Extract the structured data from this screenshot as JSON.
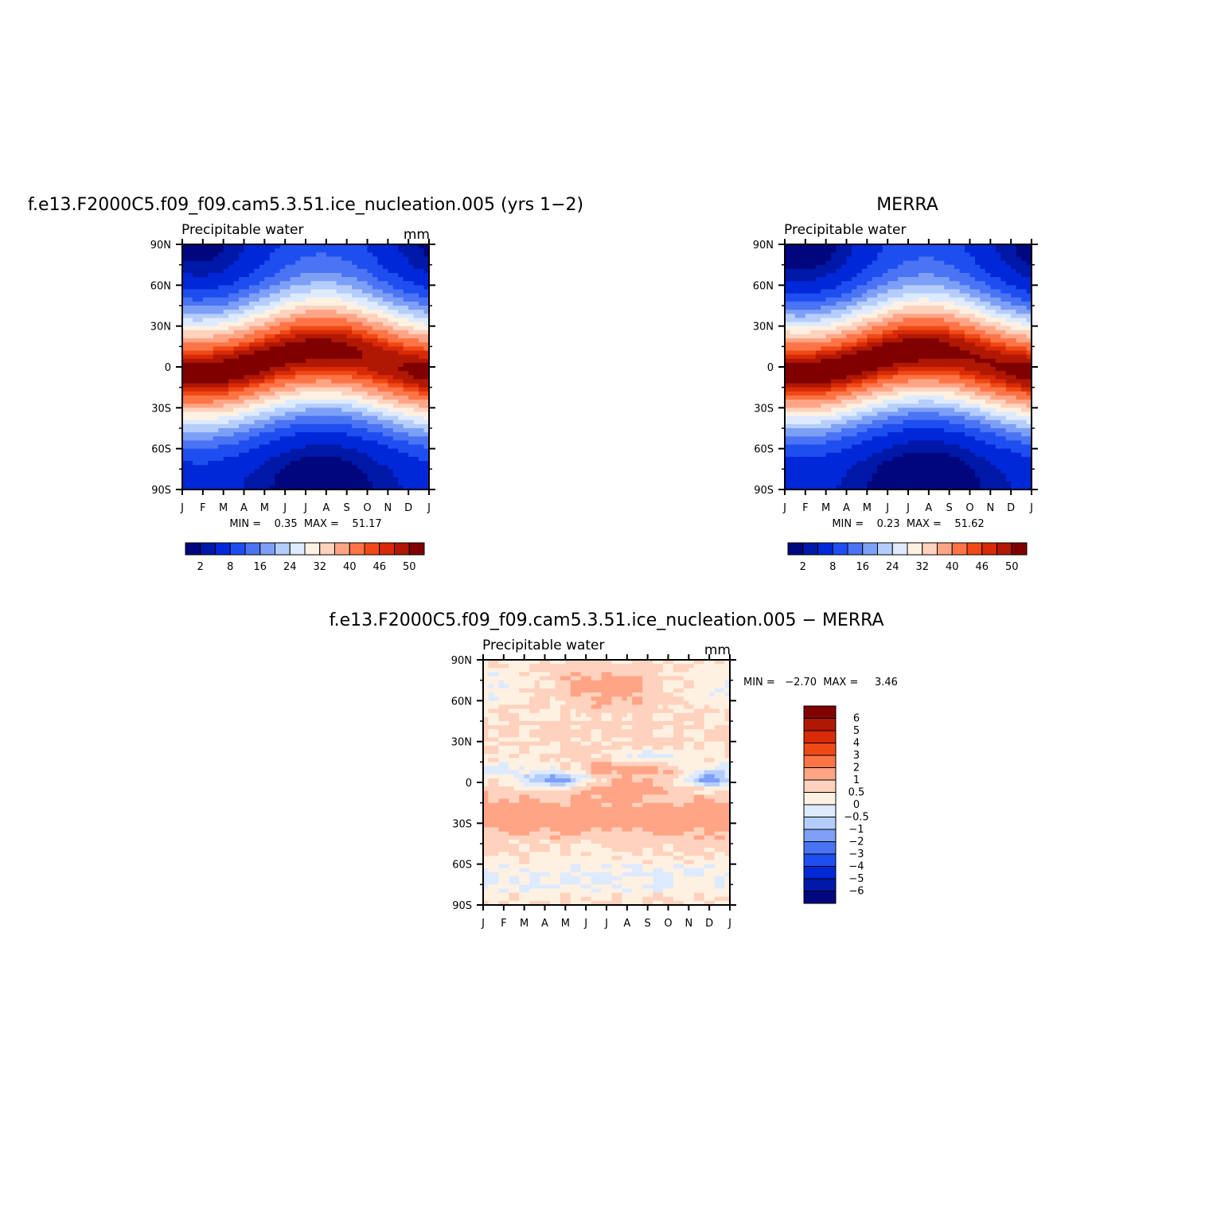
{
  "chart_data": [
    {
      "type": "heatmap",
      "title": "f.e13.F2000C5.f09_f09.cam5.3.51.ice_nucleation.005 (yrs 1−2)",
      "subtitle": "Precipitable water",
      "units": "mm",
      "x_ticks": [
        "J",
        "F",
        "M",
        "A",
        "M",
        "J",
        "J",
        "A",
        "S",
        "O",
        "N",
        "D",
        "J"
      ],
      "y_ticks": [
        "90N",
        "60N",
        "30N",
        "0",
        "30S",
        "60S",
        "90S"
      ],
      "stats_label": "MIN =    0.35  MAX =    51.17",
      "min": 0.35,
      "max": 51.17,
      "colorbar_labels": [
        "2",
        "8",
        "16",
        "24",
        "32",
        "40",
        "46",
        "50"
      ],
      "levels": [
        2,
        4,
        8,
        12,
        16,
        20,
        24,
        28,
        32,
        36,
        40,
        44,
        46,
        48,
        50
      ],
      "colors": [
        "#00077e",
        "#0018a8",
        "#0028d8",
        "#1f4ef0",
        "#4a74f3",
        "#7d9ff6",
        "#b5cdfb",
        "#ddeaff",
        "#fff1e2",
        "#ffd2be",
        "#ffa586",
        "#ff7446",
        "#ef4a16",
        "#d82a06",
        "#b01804",
        "#800000"
      ],
      "field": {
        "pole_n": 4.5,
        "pole_s": 2.3,
        "eq_peak": 50.5,
        "itcz_base": 3,
        "itcz_amp": 7,
        "width_n": 32,
        "width_s": 30,
        "nh_seasonal": 7,
        "sh_seasonal": 2.5
      }
    },
    {
      "type": "heatmap",
      "title": "MERRA",
      "subtitle": "Precipitable water",
      "units": "",
      "x_ticks": [
        "J",
        "F",
        "M",
        "A",
        "M",
        "J",
        "J",
        "A",
        "S",
        "O",
        "N",
        "D",
        "J"
      ],
      "y_ticks": [
        "90N",
        "60N",
        "30N",
        "0",
        "30S",
        "60S",
        "90S"
      ],
      "stats_label": "MIN =    0.23  MAX =    51.62",
      "min": 0.23,
      "max": 51.62,
      "colorbar_labels": [
        "2",
        "8",
        "16",
        "24",
        "32",
        "40",
        "46",
        "50"
      ],
      "levels": [
        2,
        4,
        8,
        12,
        16,
        20,
        24,
        28,
        32,
        36,
        40,
        44,
        46,
        48,
        50
      ],
      "colors": [
        "#00077e",
        "#0018a8",
        "#0028d8",
        "#1f4ef0",
        "#4a74f3",
        "#7d9ff6",
        "#b5cdfb",
        "#ddeaff",
        "#fff1e2",
        "#ffd2be",
        "#ffa586",
        "#ff7446",
        "#ef4a16",
        "#d82a06",
        "#b01804",
        "#800000"
      ],
      "field": {
        "pole_n": 4.2,
        "pole_s": 2.0,
        "eq_peak": 50.8,
        "itcz_base": 3,
        "itcz_amp": 7,
        "width_n": 31,
        "width_s": 29,
        "nh_seasonal": 7.5,
        "sh_seasonal": 2.5
      }
    },
    {
      "type": "heatmap",
      "title": "f.e13.F2000C5.f09_f09.cam5.3.51.ice_nucleation.005 − MERRA",
      "subtitle": "Precipitable water",
      "units": "mm",
      "x_ticks": [
        "J",
        "F",
        "M",
        "A",
        "M",
        "J",
        "J",
        "A",
        "S",
        "O",
        "N",
        "D",
        "J"
      ],
      "y_ticks": [
        "90N",
        "60N",
        "30N",
        "0",
        "30S",
        "60S",
        "90S"
      ],
      "stats_label": "MIN =   −2.70  MAX =     3.46",
      "min": -2.7,
      "max": 3.46,
      "colorbar_labels": [
        "6",
        "5",
        "4",
        "3",
        "2",
        "1",
        "0.5",
        "0",
        "−0.5",
        "−1",
        "−2",
        "−3",
        "−4",
        "−5",
        "−6"
      ],
      "levels": [
        -6,
        -5,
        -4,
        -3,
        -2,
        -1,
        -0.5,
        0,
        0.5,
        1,
        2,
        3,
        4,
        5,
        6
      ],
      "colors": [
        "#00077e",
        "#0018a8",
        "#0028d8",
        "#1f4ef0",
        "#4a74f3",
        "#7d9ff6",
        "#b5cdfb",
        "#ddeaff",
        "#fff1e2",
        "#ffd2be",
        "#ffa586",
        "#ff7446",
        "#ef4a16",
        "#d82a06",
        "#b01804",
        "#800000"
      ]
    }
  ]
}
